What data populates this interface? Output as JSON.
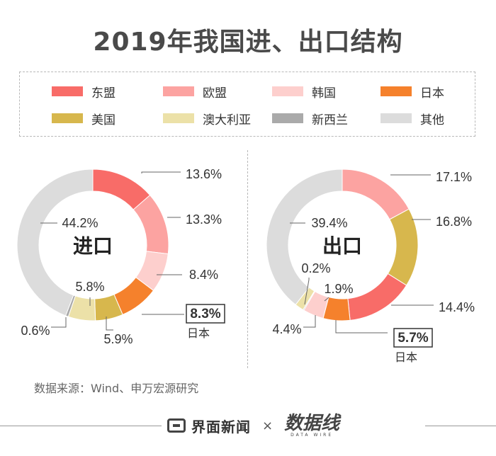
{
  "title": "2019年我国进、出口结构",
  "legend": [
    {
      "label": "东盟",
      "color": "#f86c68"
    },
    {
      "label": "欧盟",
      "color": "#fca3a1"
    },
    {
      "label": "韩国",
      "color": "#fdcfcd"
    },
    {
      "label": "日本",
      "color": "#f5812c"
    },
    {
      "label": "美国",
      "color": "#d7b74d"
    },
    {
      "label": "澳大利亚",
      "color": "#ece1a8"
    },
    {
      "label": "新西兰",
      "color": "#aaaaaa"
    },
    {
      "label": "其他",
      "color": "#dcdcdc"
    }
  ],
  "chart_data": [
    {
      "type": "pie",
      "center_label": "进口",
      "categories": [
        "东盟",
        "欧盟",
        "韩国",
        "日本",
        "美国",
        "澳大利亚",
        "新西兰",
        "其他"
      ],
      "values": [
        13.6,
        13.3,
        8.4,
        8.3,
        5.9,
        5.8,
        0.6,
        44.2
      ],
      "labels": [
        "13.6%",
        "13.3%",
        "8.4%",
        "8.3%",
        "5.9%",
        "5.8%",
        "0.6%",
        "44.2%"
      ],
      "highlight": {
        "category": "日本",
        "caption": "日本"
      }
    },
    {
      "type": "pie",
      "center_label": "出口",
      "categories": [
        "欧盟",
        "美国",
        "东盟",
        "日本",
        "韩国",
        "新西兰",
        "澳大利亚",
        "其他"
      ],
      "values": [
        17.1,
        16.8,
        14.4,
        5.7,
        4.4,
        0.2,
        1.9,
        39.4
      ],
      "labels": [
        "17.1%",
        "16.8%",
        "14.4%",
        "5.7%",
        "4.4%",
        "0.2%",
        "1.9%",
        "39.4%"
      ],
      "highlight": {
        "category": "日本",
        "caption": "日本"
      }
    }
  ],
  "source": "数据来源：Wind、申万宏源研究",
  "footer": {
    "brand": "界面新闻",
    "times": "×",
    "partner": "数据线",
    "partner_sub": "DATA WIRE"
  }
}
